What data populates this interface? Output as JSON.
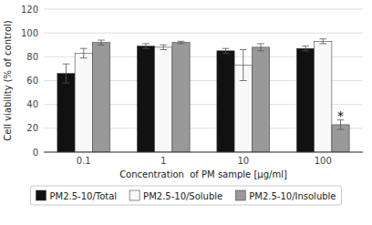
{
  "chart_data": {
    "type": "bar",
    "categories": [
      "0.1",
      "1",
      "10",
      "100"
    ],
    "series": [
      {
        "name": "PM2.5-10/Total",
        "color": "#111111",
        "values": [
          66,
          89,
          85,
          87
        ],
        "errors": [
          8,
          2,
          2,
          2
        ]
      },
      {
        "name": "PM2.5-10/Soluble",
        "color": "#f8f8f8",
        "values": [
          83,
          88,
          73,
          93
        ],
        "errors": [
          4,
          2,
          13,
          2
        ]
      },
      {
        "name": "PM2.5-10/Insoluble",
        "color": "#999999",
        "values": [
          92,
          92,
          88,
          23
        ],
        "errors": [
          2,
          1,
          3,
          4
        ]
      }
    ],
    "x_label": "Concentration  of PM sample [μg/ml]",
    "y_label": "Cell viability (% of control)",
    "ylim": [
      0,
      120
    ],
    "yticks": [
      0,
      20,
      40,
      60,
      80,
      100,
      120
    ],
    "grid": true,
    "legend": "bottom",
    "annotations": [
      {
        "text": "*",
        "category": "100",
        "series": "PM2.5-10/Insoluble",
        "y": 30
      }
    ]
  }
}
